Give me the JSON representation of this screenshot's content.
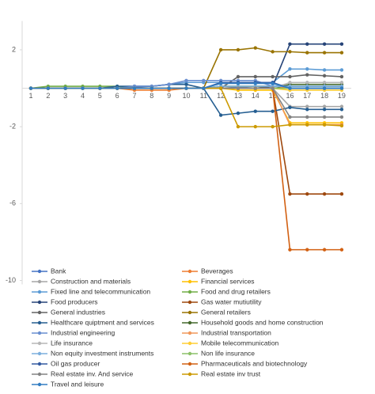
{
  "chart_data": {
    "type": "line",
    "categories": [
      1,
      2,
      3,
      4,
      5,
      6,
      7,
      8,
      9,
      10,
      11,
      12,
      13,
      14,
      15,
      16,
      17,
      18,
      19
    ],
    "ylim": [
      -10,
      3.5
    ],
    "yticks": [
      -10,
      -6,
      -2,
      2
    ],
    "grid": false,
    "legend": "bottom",
    "series": [
      {
        "name": "Bank",
        "color": "#4472C4",
        "values": [
          0,
          0,
          0,
          0,
          0,
          0,
          0.05,
          0,
          0,
          0,
          0,
          0,
          0.05,
          0.1,
          0.1,
          0,
          0,
          0,
          0
        ]
      },
      {
        "name": "Beverages",
        "color": "#ED7D31",
        "values": [
          0,
          0,
          0,
          0,
          0,
          0,
          -0.1,
          -0.1,
          -0.1,
          0,
          0,
          0.1,
          0.1,
          0.1,
          0.1,
          0,
          0,
          0,
          0
        ]
      },
      {
        "name": "Construction and materials",
        "color": "#A5A5A5",
        "values": [
          0,
          0,
          0,
          0,
          0,
          0,
          0,
          0,
          0,
          0,
          0,
          0,
          0,
          0,
          0,
          -0.95,
          -0.95,
          -0.95,
          -0.95
        ]
      },
      {
        "name": "Financial services",
        "color": "#FFC000",
        "values": [
          0,
          0,
          0,
          0,
          0,
          0,
          0,
          0,
          0,
          0,
          0,
          0,
          -0.1,
          -0.1,
          -0.1,
          -1.8,
          -1.8,
          -1.8,
          -1.8
        ]
      },
      {
        "name": "Fixed line and telecommunication",
        "color": "#5B9BD5",
        "values": [
          0,
          0,
          0,
          0,
          0,
          0,
          0.1,
          0.1,
          0.2,
          0.3,
          0.3,
          0.3,
          0.3,
          0.3,
          0.3,
          1.0,
          1.0,
          0.95,
          0.95
        ]
      },
      {
        "name": "Food and drug retailers",
        "color": "#70AD47",
        "values": [
          0,
          0.1,
          0.1,
          0.1,
          0.1,
          0.1,
          0,
          0,
          0,
          0,
          0,
          0.1,
          0.1,
          0.1,
          0.1,
          0.1,
          0.1,
          0.1,
          0.1
        ]
      },
      {
        "name": "Food producers",
        "color": "#264478",
        "values": [
          0,
          0,
          0,
          0,
          0,
          0,
          0,
          0,
          0,
          0,
          0,
          0,
          0,
          0,
          0.1,
          2.3,
          2.3,
          2.3,
          2.3
        ]
      },
      {
        "name": "Gas water mutiutility",
        "color": "#9E480E",
        "values": [
          0,
          0,
          0,
          0,
          0,
          0,
          0,
          0,
          0,
          0,
          0,
          0,
          0,
          0,
          0,
          -5.5,
          -5.5,
          -5.5,
          -5.5
        ]
      },
      {
        "name": "General industries",
        "color": "#636363",
        "values": [
          0,
          0,
          0,
          0,
          0,
          0,
          0,
          0,
          0,
          0,
          0,
          0,
          0.6,
          0.6,
          0.6,
          0.6,
          0.7,
          0.65,
          0.6
        ]
      },
      {
        "name": "General retailers",
        "color": "#997300",
        "values": [
          0,
          0,
          0,
          0,
          0,
          0,
          0,
          0,
          0,
          0,
          0,
          2.0,
          2.0,
          2.1,
          1.9,
          1.9,
          1.85,
          1.85,
          1.85
        ]
      },
      {
        "name": "Healthcare quiptment and services",
        "color": "#255E91",
        "values": [
          0,
          0,
          0,
          0,
          0,
          0.1,
          0.1,
          0.1,
          0.2,
          0.2,
          0,
          -1.4,
          -1.3,
          -1.2,
          -1.2,
          -1.0,
          -1.1,
          -1.1,
          -1.1
        ]
      },
      {
        "name": "Household goods and home construction",
        "color": "#43682B",
        "values": [
          0,
          0,
          0,
          0,
          0,
          0,
          0,
          0,
          0,
          0,
          0,
          0,
          0,
          0,
          0,
          0.2,
          0.2,
          0.2,
          0.2
        ]
      },
      {
        "name": "Industrial engineering",
        "color": "#698ED0",
        "values": [
          0,
          0,
          0,
          0,
          0,
          0,
          0.1,
          0.1,
          0.2,
          0.4,
          0.4,
          0.4,
          0.4,
          0.4,
          0.1,
          0.1,
          0.1,
          0.1,
          0.1
        ]
      },
      {
        "name": "Industrial transportation",
        "color": "#F1975A",
        "values": [
          0,
          0,
          0,
          0,
          0,
          0,
          0,
          0,
          0,
          0,
          0,
          0,
          0,
          0,
          0,
          -1.9,
          -1.9,
          -1.9,
          -1.9
        ]
      },
      {
        "name": "Life insurance",
        "color": "#B7B7B7",
        "values": [
          0,
          0,
          0,
          0,
          0,
          0,
          0,
          0,
          0,
          0,
          0,
          0,
          0,
          0,
          0,
          0.3,
          0.3,
          0.3,
          0.3
        ]
      },
      {
        "name": "Mobile telecommunication",
        "color": "#FFCD33",
        "values": [
          0,
          0,
          0,
          0,
          0,
          0,
          0,
          0,
          0,
          0,
          0,
          0,
          0,
          0,
          0,
          -0.1,
          -0.1,
          -0.1,
          -0.1
        ]
      },
      {
        "name": "Non equity investment instruments",
        "color": "#7CAFDD",
        "values": [
          0,
          0,
          0,
          0,
          0,
          0,
          0,
          0,
          0,
          0,
          0,
          0.1,
          0.1,
          0.1,
          0.1,
          0.1,
          0.1,
          0.1,
          0.1
        ]
      },
      {
        "name": "Non life insurance",
        "color": "#8CC168",
        "values": [
          0,
          0,
          0,
          0,
          0,
          0,
          0,
          0,
          0,
          0,
          0,
          0,
          0,
          0,
          0,
          0,
          0,
          0,
          0
        ]
      },
      {
        "name": "Oil gas producer",
        "color": "#335AA1",
        "values": [
          0,
          0,
          0,
          0,
          0,
          0,
          0,
          0,
          0,
          0,
          0,
          0.3,
          0.3,
          0.3,
          0.3,
          0,
          0,
          0,
          0
        ]
      },
      {
        "name": "Pharmaceuticals and biotechnology",
        "color": "#D26012",
        "values": [
          0,
          0,
          0,
          0,
          0,
          0,
          0,
          0,
          0,
          0,
          0,
          0,
          0,
          0,
          0,
          -8.4,
          -8.4,
          -8.4,
          -8.4
        ]
      },
      {
        "name": "Real estate inv. And service",
        "color": "#848484",
        "values": [
          0,
          0,
          0,
          0,
          0,
          0,
          0,
          0,
          0,
          0,
          0,
          0,
          0,
          0,
          0,
          -1.5,
          -1.5,
          -1.5,
          -1.5
        ]
      },
      {
        "name": "Real estate inv trust",
        "color": "#CC9A00",
        "values": [
          0,
          0,
          0,
          0,
          0,
          0,
          0,
          0,
          0,
          0,
          0,
          0,
          -2.0,
          -2.0,
          -2.0,
          -1.9,
          -1.9,
          -1.9,
          -1.95
        ]
      },
      {
        "name": "Travel and leisure",
        "color": "#327DC2",
        "values": [
          0,
          0,
          0,
          0,
          0,
          0,
          0,
          0,
          0,
          0,
          0,
          0.25,
          0.25,
          0.25,
          0.25,
          0,
          0,
          0,
          0
        ]
      }
    ]
  }
}
